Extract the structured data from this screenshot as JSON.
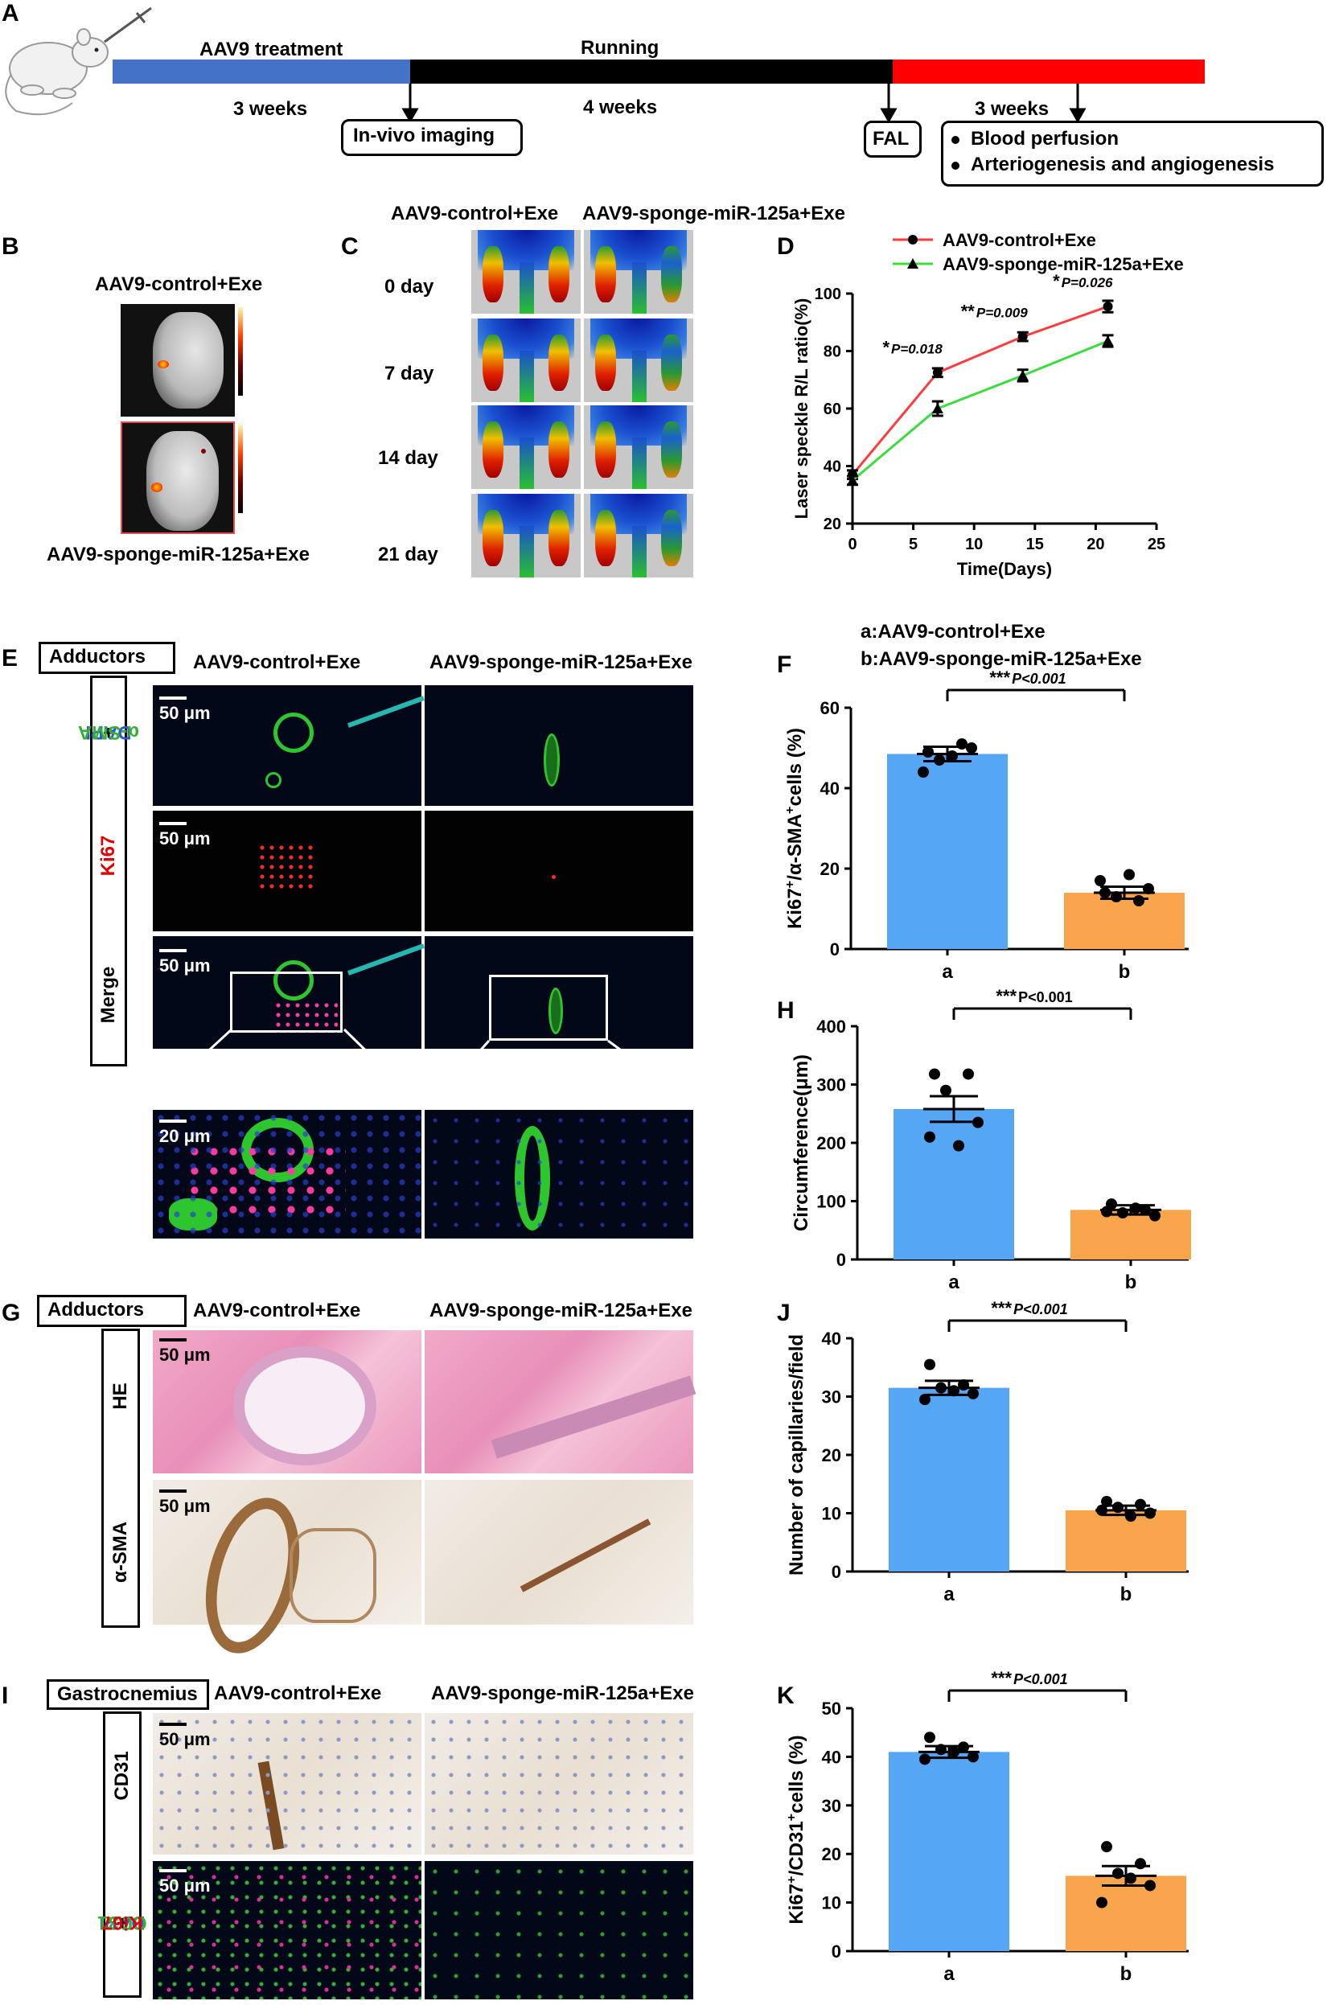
{
  "panel_labels": {
    "A": "A",
    "B": "B",
    "C": "C",
    "D": "D",
    "E": "E",
    "F": "F",
    "G": "G",
    "H": "H",
    "I": "I",
    "J": "J",
    "K": "K"
  },
  "timeline": {
    "aav9_treatment": "AAV9 treatment",
    "running": "Running",
    "three_weeks_left": "3 weeks",
    "four_weeks": "4 weeks",
    "three_weeks_right": "3 weeks",
    "in_vivo_imaging": "In-vivo imaging",
    "fal": "FAL",
    "bullet_1": "Blood perfusion",
    "bullet_2": "Arteriogenesis and angiogenesis",
    "colors": {
      "treatment": "#4472c4",
      "running": "#000000",
      "post": "#ff0000"
    }
  },
  "panel_b": {
    "top": "AAV9-control+Exe",
    "bottom": "AAV9-sponge-miR-125a+Exe"
  },
  "panel_c": {
    "col1": "AAV9-control+Exe",
    "col2": "AAV9-sponge-miR-125a+Exe",
    "rows": [
      "0 day",
      "7 day",
      "14 day",
      "21 day"
    ]
  },
  "panel_e": {
    "tag": "Adductors",
    "col1": "AAV9-control+Exe",
    "col2": "AAV9-sponge-miR-125a+Exe",
    "row1_dapi": "DAPI",
    "row1_plus": "+",
    "row1_sma": "α-SMA",
    "row2": "Ki67",
    "row3": "Merge",
    "scale50": "50 μm",
    "scale20": "20 μm"
  },
  "panel_g": {
    "tag": "Adductors",
    "col1": "AAV9-control+Exe",
    "col2": "AAV9-sponge-miR-125a+Exe",
    "row1": "HE",
    "row2": "α-SMA",
    "scale50": "50 μm"
  },
  "panel_i": {
    "tag": "Gastrocnemius",
    "col1": "AAV9-control+Exe",
    "col2": "AAV9-sponge-miR-125a+Exe",
    "row1": "CD31",
    "row2_dapi": "DAPI",
    "row2_plus1": "+",
    "row2_cd31": "CD31",
    "row2_plus2": "+",
    "row2_ki67": "Ki67",
    "scale50": "50 μm"
  },
  "legend_f": {
    "a": "a:AAV9-control+Exe",
    "b": "b:AAV9-sponge-miR-125a+Exe"
  },
  "chart_data": [
    {
      "id": "D",
      "type": "line",
      "xlabel": "Time(Days)",
      "ylabel": "Laser speckle R/L ratio(%)",
      "xlim": [
        0,
        25
      ],
      "ylim": [
        20,
        100
      ],
      "xticks": [
        0,
        5,
        10,
        15,
        20,
        25
      ],
      "yticks": [
        20,
        40,
        60,
        80,
        100
      ],
      "x": [
        0,
        7,
        14,
        21
      ],
      "series": [
        {
          "name": "AAV9-control+Exe",
          "values": [
            37,
            72.5,
            85,
            95.5
          ],
          "err": [
            1.5,
            1.5,
            1.5,
            2
          ],
          "color": "#ff3b3b",
          "marker": "circle"
        },
        {
          "name": "AAV9-sponge-miR-125a+Exe",
          "values": [
            35,
            60,
            71.5,
            83.5
          ],
          "err": [
            1.5,
            2.5,
            2,
            2
          ],
          "color": "#3cdc3c",
          "marker": "triangle"
        }
      ],
      "annotations": [
        {
          "x": 7,
          "stars": "*",
          "p": "P=0.018"
        },
        {
          "x": 14,
          "stars": "**",
          "p": "P=0.009"
        },
        {
          "x": 21,
          "stars": "*",
          "p": "P=0.026"
        }
      ]
    },
    {
      "id": "F",
      "type": "bar",
      "categories": [
        "a",
        "b"
      ],
      "ylabel": "Ki67+/α-SMA+ cells (%)",
      "ylabel_parts": [
        "Ki67",
        "+",
        "/α-SMA",
        "+",
        " cells (%)"
      ],
      "ylim": [
        0,
        60
      ],
      "yticks": [
        0,
        20,
        40,
        60
      ],
      "values": [
        48.5,
        14
      ],
      "err": [
        1.8,
        1.5
      ],
      "points": [
        [
          49,
          51,
          47,
          50,
          44,
          48
        ],
        [
          14,
          12,
          13,
          15,
          17,
          18.5
        ]
      ],
      "colors": [
        "#55a6f4",
        "#f9a54b"
      ],
      "stars": "***",
      "p": "P<0.001"
    },
    {
      "id": "H",
      "type": "bar",
      "categories": [
        "a",
        "b"
      ],
      "ylabel": "Circumference(μm)",
      "ylim": [
        0,
        400
      ],
      "yticks": [
        0,
        100,
        200,
        300,
        400
      ],
      "values": [
        258,
        85
      ],
      "err": [
        22,
        8
      ],
      "points": [
        [
          318,
          318,
          290,
          235,
          210,
          195
        ],
        [
          95,
          85,
          80,
          75,
          82,
          88
        ]
      ],
      "colors": [
        "#55a6f4",
        "#f9a54b"
      ],
      "stars": "***",
      "p": "P<0.001"
    },
    {
      "id": "J",
      "type": "bar",
      "categories": [
        "a",
        "b"
      ],
      "ylabel": "Number of capillaries/field",
      "ylim": [
        0,
        40
      ],
      "yticks": [
        0,
        10,
        20,
        30,
        40
      ],
      "values": [
        31.5,
        10.5
      ],
      "err": [
        1.2,
        0.8
      ],
      "points": [
        [
          35.5,
          32,
          31.5,
          30.5,
          29.5,
          31
        ],
        [
          12,
          11.5,
          11,
          10,
          10.5,
          9.5
        ]
      ],
      "colors": [
        "#55a6f4",
        "#f9a54b"
      ],
      "stars": "***",
      "p": "P<0.001"
    },
    {
      "id": "K",
      "type": "bar",
      "categories": [
        "a",
        "b"
      ],
      "ylabel": "Ki67+/CD31+ cells (%)",
      "ylabel_parts": [
        "Ki67",
        "+",
        "/CD31",
        "+",
        " cells (%)"
      ],
      "ylim": [
        0,
        50
      ],
      "yticks": [
        0,
        10,
        20,
        30,
        40,
        50
      ],
      "values": [
        41,
        15.5
      ],
      "err": [
        1.2,
        2
      ],
      "points": [
        [
          44,
          42,
          41.5,
          40,
          39.5,
          41
        ],
        [
          21.5,
          18,
          16,
          13.5,
          10,
          15
        ]
      ],
      "colors": [
        "#55a6f4",
        "#f9a54b"
      ],
      "stars": "***",
      "p": "P<0.001"
    }
  ]
}
